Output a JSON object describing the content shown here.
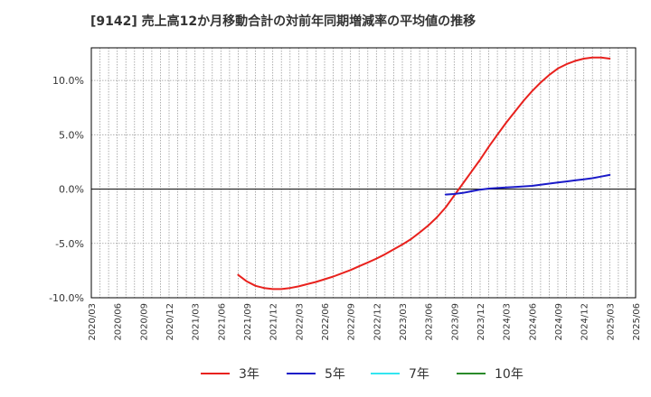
{
  "chart_data": {
    "type": "line",
    "title": "[9142]  売上高12か月移動合計の対前年同期増減率の平均値の推移",
    "xlabel": "",
    "ylabel": "",
    "ylim": [
      -10,
      13
    ],
    "y_ticks": [
      10,
      5,
      0,
      -5,
      -10
    ],
    "y_tick_labels": [
      "10.0%",
      "5.0%",
      "0.0%",
      "-5.0%",
      "-10.0%"
    ],
    "x_tick_labels": [
      "2020/03",
      "2020/06",
      "2020/09",
      "2020/12",
      "2021/03",
      "2021/06",
      "2021/09",
      "2021/12",
      "2022/03",
      "2022/06",
      "2022/09",
      "2022/12",
      "2023/03",
      "2023/06",
      "2023/09",
      "2023/12",
      "2024/03",
      "2024/06",
      "2024/09",
      "2024/12",
      "2025/03",
      "2025/06"
    ],
    "grid": true,
    "series": [
      {
        "name": "3年",
        "color": "#e8211d",
        "x": [
          "2021/08",
          "2021/09",
          "2021/10",
          "2021/11",
          "2021/12",
          "2022/01",
          "2022/02",
          "2022/03",
          "2022/04",
          "2022/05",
          "2022/06",
          "2022/07",
          "2022/08",
          "2022/09",
          "2022/10",
          "2022/11",
          "2022/12",
          "2023/01",
          "2023/02",
          "2023/03",
          "2023/04",
          "2023/05",
          "2023/06",
          "2023/07",
          "2023/08",
          "2023/09",
          "2023/10",
          "2023/11",
          "2023/12",
          "2024/01",
          "2024/02",
          "2024/03",
          "2024/04",
          "2024/05",
          "2024/06",
          "2024/07",
          "2024/08",
          "2024/09",
          "2024/10",
          "2024/11",
          "2024/12",
          "2025/01",
          "2025/02",
          "2025/03"
        ],
        "values": [
          -7.9,
          -8.5,
          -8.9,
          -9.1,
          -9.2,
          -9.2,
          -9.1,
          -8.95,
          -8.75,
          -8.55,
          -8.3,
          -8.05,
          -7.75,
          -7.45,
          -7.1,
          -6.75,
          -6.4,
          -6.0,
          -5.55,
          -5.1,
          -4.6,
          -4.0,
          -3.35,
          -2.6,
          -1.7,
          -0.6,
          0.5,
          1.6,
          2.7,
          3.9,
          5.0,
          6.1,
          7.1,
          8.1,
          9.0,
          9.8,
          10.5,
          11.1,
          11.5,
          11.8,
          12.0,
          12.1,
          12.1,
          12.0
        ]
      },
      {
        "name": "5年",
        "color": "#1a1ac8",
        "x": [
          "2023/08",
          "2023/09",
          "2023/10",
          "2023/11",
          "2023/12",
          "2024/01",
          "2024/02",
          "2024/03",
          "2024/04",
          "2024/05",
          "2024/06",
          "2024/07",
          "2024/08",
          "2024/09",
          "2024/10",
          "2024/11",
          "2024/12",
          "2025/01",
          "2025/02",
          "2025/03"
        ],
        "values": [
          -0.5,
          -0.45,
          -0.35,
          -0.2,
          -0.05,
          0.05,
          0.1,
          0.15,
          0.2,
          0.25,
          0.3,
          0.4,
          0.5,
          0.6,
          0.7,
          0.8,
          0.9,
          1.0,
          1.15,
          1.3
        ]
      },
      {
        "name": "7年",
        "color": "#33e5f0",
        "x": [],
        "values": []
      },
      {
        "name": "10年",
        "color": "#2a8a2a",
        "x": [],
        "values": []
      }
    ]
  }
}
